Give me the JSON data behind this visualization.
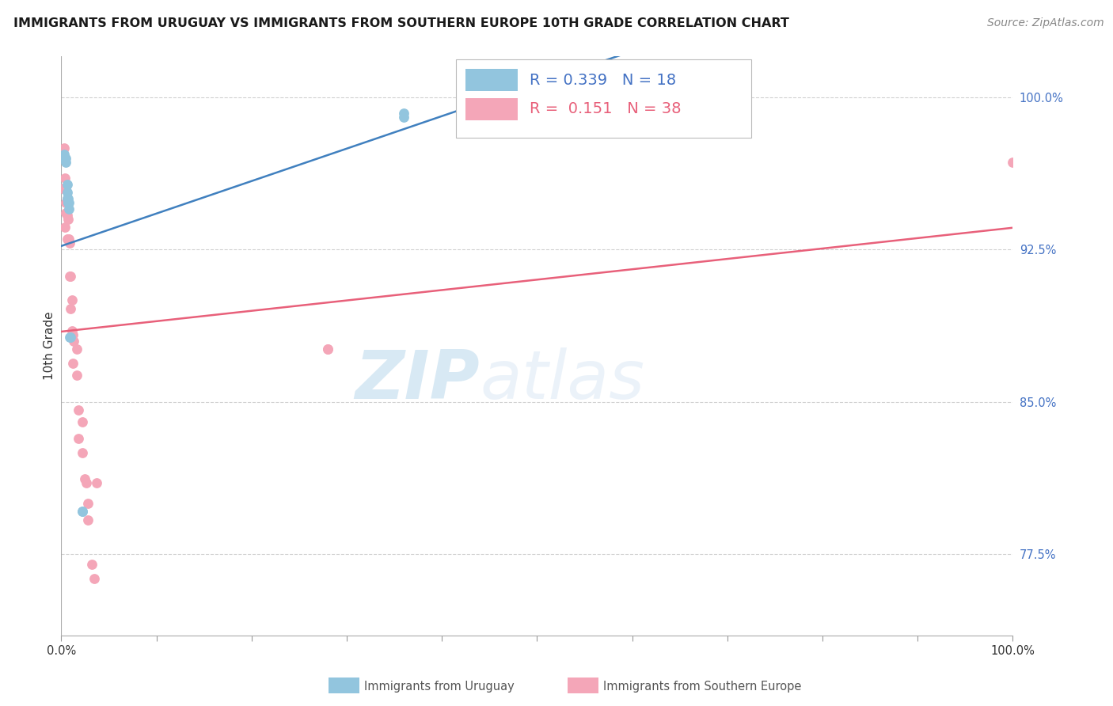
{
  "title": "IMMIGRANTS FROM URUGUAY VS IMMIGRANTS FROM SOUTHERN EUROPE 10TH GRADE CORRELATION CHART",
  "source": "Source: ZipAtlas.com",
  "ylabel": "10th Grade",
  "watermark_zip": "ZIP",
  "watermark_atlas": "atlas",
  "xlim": [
    0.0,
    1.0
  ],
  "ylim": [
    0.735,
    1.02
  ],
  "yticks": [
    0.775,
    0.85,
    0.925,
    1.0
  ],
  "ytick_labels": [
    "77.5%",
    "85.0%",
    "92.5%",
    "100.0%"
  ],
  "xtick_positions": [
    0.0,
    0.1,
    0.2,
    0.3,
    0.4,
    0.5,
    0.6,
    0.7,
    0.8,
    0.9,
    1.0
  ],
  "xtick_labels": [
    "0.0%",
    "",
    "",
    "",
    "",
    "",
    "",
    "",
    "",
    "",
    "100.0%"
  ],
  "uruguay_R": "0.339",
  "uruguay_N": "18",
  "southern_R": "0.151",
  "southern_N": "38",
  "uruguay_color": "#92c5de",
  "southern_color": "#f4a6b8",
  "line_uruguay_color": "#4080bf",
  "line_southern_color": "#e8607a",
  "uruguay_x": [
    0.003,
    0.004,
    0.005,
    0.005,
    0.006,
    0.006,
    0.006,
    0.007,
    0.007,
    0.007,
    0.008,
    0.008,
    0.009,
    0.01,
    0.022,
    0.022,
    0.36,
    0.36
  ],
  "uruguay_y": [
    0.972,
    0.97,
    0.97,
    0.968,
    0.957,
    0.953,
    0.95,
    0.95,
    0.948,
    0.948,
    0.948,
    0.945,
    0.882,
    0.882,
    0.796,
    0.796,
    0.99,
    0.992
  ],
  "southern_x": [
    0.001,
    0.003,
    0.004,
    0.004,
    0.005,
    0.005,
    0.005,
    0.006,
    0.006,
    0.006,
    0.007,
    0.007,
    0.008,
    0.009,
    0.009,
    0.01,
    0.01,
    0.011,
    0.011,
    0.012,
    0.012,
    0.013,
    0.016,
    0.016,
    0.018,
    0.018,
    0.022,
    0.022,
    0.025,
    0.026,
    0.028,
    0.028,
    0.032,
    0.035,
    0.037,
    0.28,
    0.28,
    1.0
  ],
  "southern_y": [
    0.955,
    0.975,
    0.96,
    0.936,
    0.955,
    0.948,
    0.943,
    0.95,
    0.942,
    0.93,
    0.94,
    0.93,
    0.93,
    0.928,
    0.912,
    0.912,
    0.896,
    0.9,
    0.885,
    0.883,
    0.869,
    0.88,
    0.876,
    0.863,
    0.846,
    0.832,
    0.84,
    0.825,
    0.812,
    0.81,
    0.8,
    0.792,
    0.77,
    0.763,
    0.81,
    0.876,
    0.876,
    0.968
  ],
  "title_fontsize": 11.5,
  "source_fontsize": 10,
  "ylabel_fontsize": 11,
  "tick_fontsize": 10.5,
  "legend_fontsize": 14,
  "watermark_fontsize_zip": 62,
  "watermark_fontsize_atlas": 62,
  "background_color": "#ffffff",
  "legend_color_blue": "#4472c4",
  "legend_color_pink": "#e8607a",
  "grid_color": "#d0d0d0",
  "bottom_legend_color": "#555555"
}
